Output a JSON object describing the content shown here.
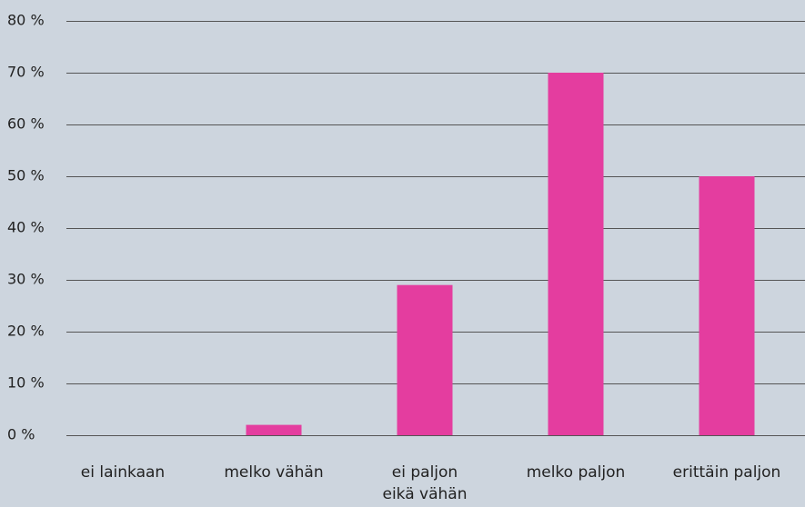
{
  "chart_data": {
    "type": "bar",
    "categories": [
      "ei lainkaan",
      "melko vähän",
      "ei paljon\neikä vähän",
      "melko paljon",
      "erittäin paljon"
    ],
    "values": [
      0,
      2,
      29,
      70,
      50
    ],
    "color": "#e43d9f",
    "ylim": [
      0,
      80
    ],
    "yticks": [
      {
        "value": 0,
        "label": "0 %"
      },
      {
        "value": 10,
        "label": "10 %"
      },
      {
        "value": 20,
        "label": "20 %"
      },
      {
        "value": 30,
        "label": "30 %"
      },
      {
        "value": 40,
        "label": "40 %"
      },
      {
        "value": 50,
        "label": "50 %"
      },
      {
        "value": 60,
        "label": "60 %"
      },
      {
        "value": 70,
        "label": "70 %"
      },
      {
        "value": 80,
        "label": "80 %"
      }
    ],
    "grid": true
  }
}
